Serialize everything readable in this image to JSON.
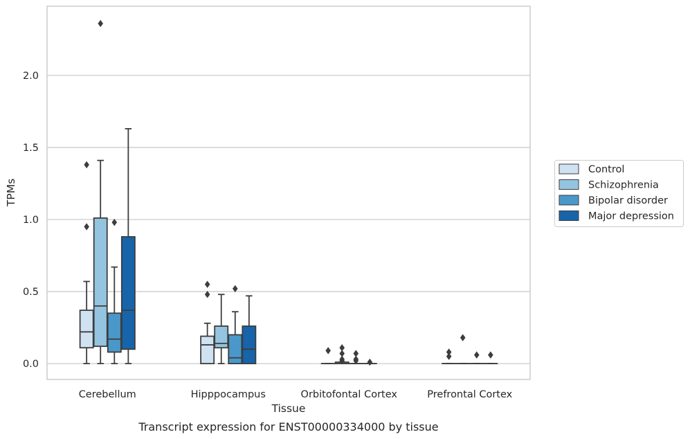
{
  "caption": "Transcript expression for ENST00000334000 by tissue",
  "chart_data": {
    "type": "box",
    "xlabel": "Tissue",
    "ylabel": "TPMs",
    "ylim": [
      -0.11,
      2.48
    ],
    "yticks": [
      0.0,
      0.5,
      1.0,
      1.5,
      2.0
    ],
    "ytick_labels": [
      "0.0",
      "0.5",
      "1.0",
      "1.5",
      "2.0"
    ],
    "grid": "horizontal",
    "legend_position": "right",
    "categories": [
      "Cerebellum",
      "Hipppocampus",
      "Orbitofontal Cortex",
      "Prefrontal Cortex"
    ],
    "series": [
      {
        "name": "Control",
        "color": "#d0e1f2",
        "boxes": [
          {
            "q1": 0.11,
            "median": 0.22,
            "q3": 0.37,
            "whisker_low": 0.0,
            "whisker_high": 0.57,
            "outliers": [
              1.38,
              0.95
            ]
          },
          {
            "q1": 0.0,
            "median": 0.13,
            "q3": 0.19,
            "whisker_low": 0.0,
            "whisker_high": 0.28,
            "outliers": [
              0.55,
              0.48
            ]
          },
          {
            "q1": 0.0,
            "median": 0.0,
            "q3": 0.0,
            "whisker_low": 0.0,
            "whisker_high": 0.0,
            "outliers": [
              0.09
            ]
          },
          {
            "q1": 0.0,
            "median": 0.0,
            "q3": 0.0,
            "whisker_low": 0.0,
            "whisker_high": 0.0,
            "outliers": [
              0.08,
              0.05
            ]
          }
        ]
      },
      {
        "name": "Schizophrenia",
        "color": "#94c4df",
        "boxes": [
          {
            "q1": 0.12,
            "median": 0.4,
            "q3": 1.01,
            "whisker_low": 0.0,
            "whisker_high": 1.41,
            "outliers": [
              2.36
            ]
          },
          {
            "q1": 0.11,
            "median": 0.14,
            "q3": 0.26,
            "whisker_low": 0.0,
            "whisker_high": 0.48,
            "outliers": []
          },
          {
            "q1": 0.0,
            "median": 0.0,
            "q3": 0.01,
            "whisker_low": 0.0,
            "whisker_high": 0.01,
            "outliers": [
              0.11,
              0.07,
              0.03,
              0.02
            ]
          },
          {
            "q1": 0.0,
            "median": 0.0,
            "q3": 0.0,
            "whisker_low": 0.0,
            "whisker_high": 0.0,
            "outliers": [
              0.18
            ]
          }
        ]
      },
      {
        "name": "Bipolar disorder",
        "color": "#4a98c9",
        "boxes": [
          {
            "q1": 0.08,
            "median": 0.17,
            "q3": 0.35,
            "whisker_low": 0.0,
            "whisker_high": 0.67,
            "outliers": [
              0.98
            ]
          },
          {
            "q1": 0.0,
            "median": 0.04,
            "q3": 0.2,
            "whisker_low": 0.0,
            "whisker_high": 0.36,
            "outliers": [
              0.52
            ]
          },
          {
            "q1": 0.0,
            "median": 0.0,
            "q3": 0.0,
            "whisker_low": 0.0,
            "whisker_high": 0.0,
            "outliers": [
              0.07,
              0.03,
              0.02
            ]
          },
          {
            "q1": 0.0,
            "median": 0.0,
            "q3": 0.0,
            "whisker_low": 0.0,
            "whisker_high": 0.0,
            "outliers": [
              0.06
            ]
          }
        ]
      },
      {
        "name": "Major depression",
        "color": "#1764ab",
        "boxes": [
          {
            "q1": 0.1,
            "median": 0.37,
            "q3": 0.88,
            "whisker_low": 0.0,
            "whisker_high": 1.63,
            "outliers": []
          },
          {
            "q1": 0.0,
            "median": 0.1,
            "q3": 0.26,
            "whisker_low": 0.0,
            "whisker_high": 0.47,
            "outliers": []
          },
          {
            "q1": 0.0,
            "median": 0.0,
            "q3": 0.0,
            "whisker_low": 0.0,
            "whisker_high": 0.0,
            "outliers": [
              0.01
            ]
          },
          {
            "q1": 0.0,
            "median": 0.0,
            "q3": 0.0,
            "whisker_low": 0.0,
            "whisker_high": 0.0,
            "outliers": [
              0.06
            ]
          }
        ]
      }
    ]
  }
}
